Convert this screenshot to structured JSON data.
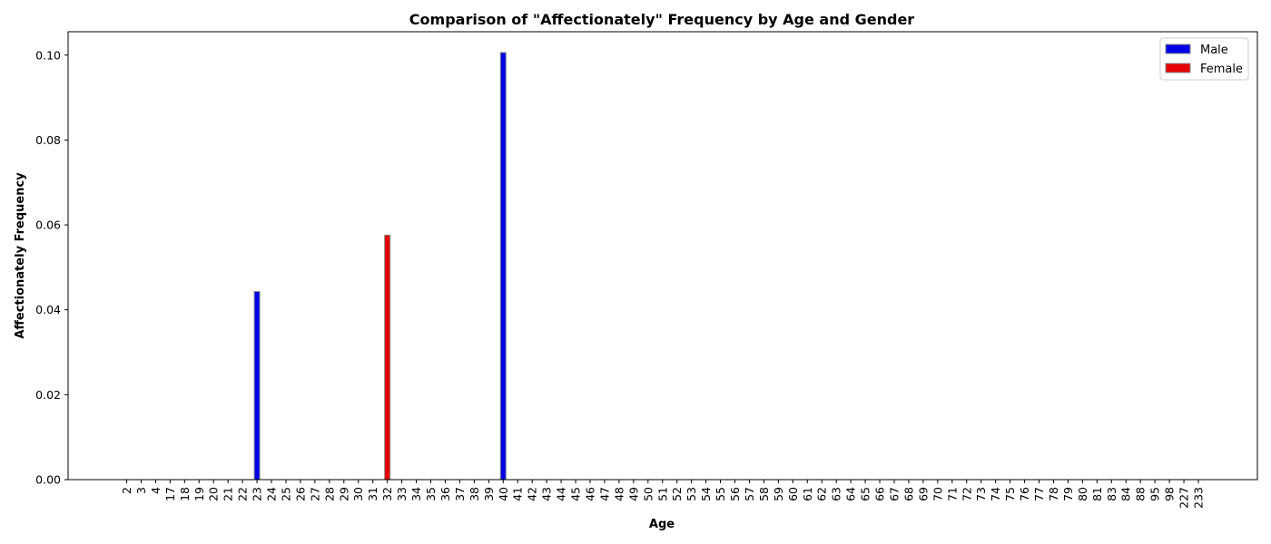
{
  "chart_data": {
    "type": "bar",
    "title": "Comparison of \"Affectionately\" Frequency by Age and Gender",
    "xlabel": "Age",
    "ylabel": "Affectionately Frequency",
    "ylim": [
      0,
      0.1055
    ],
    "yticks": [
      "0.00",
      "0.02",
      "0.04",
      "0.06",
      "0.08",
      "0.10"
    ],
    "ytick_values": [
      0,
      0.02,
      0.04,
      0.06,
      0.08,
      0.1
    ],
    "categories": [
      "2",
      "3",
      "4",
      "17",
      "18",
      "19",
      "20",
      "21",
      "22",
      "23",
      "24",
      "25",
      "26",
      "27",
      "28",
      "29",
      "30",
      "31",
      "32",
      "33",
      "34",
      "35",
      "36",
      "37",
      "38",
      "39",
      "40",
      "41",
      "42",
      "43",
      "44",
      "45",
      "46",
      "47",
      "48",
      "49",
      "50",
      "51",
      "52",
      "53",
      "54",
      "55",
      "56",
      "57",
      "58",
      "59",
      "60",
      "61",
      "62",
      "63",
      "64",
      "65",
      "66",
      "67",
      "68",
      "69",
      "70",
      "71",
      "72",
      "73",
      "74",
      "75",
      "76",
      "77",
      "78",
      "79",
      "80",
      "81",
      "83",
      "84",
      "88",
      "95",
      "98",
      "227",
      "233"
    ],
    "series": [
      {
        "name": "Male",
        "color": "#0000e6",
        "values": {
          "23": 0.0443,
          "40": 0.1006
        }
      },
      {
        "name": "Female",
        "color": "#e60000",
        "values": {
          "32": 0.0576
        }
      }
    ],
    "legend_position": "top-right",
    "grid": false
  }
}
